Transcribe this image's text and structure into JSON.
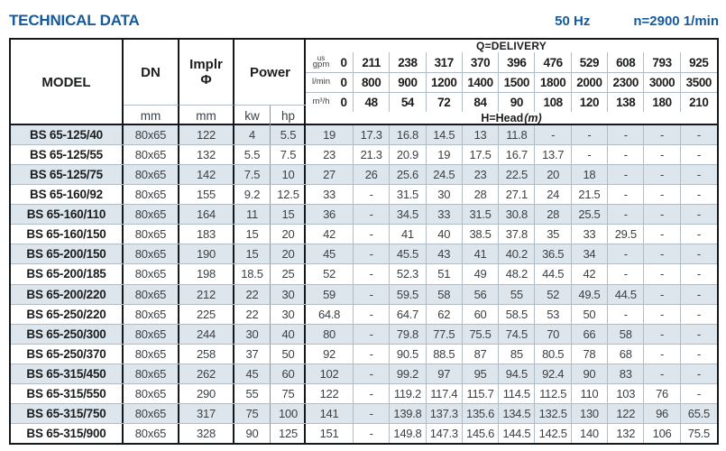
{
  "page": {
    "title": "TECHNICAL DATA",
    "frequency": "50 Hz",
    "speed": "n=2900 1/min"
  },
  "colors": {
    "accent_blue": "#155a9c",
    "row_shade": "#dde6ec",
    "border_dark": "#15181b",
    "grid_light": "#b2bcc4"
  },
  "table": {
    "left_header": {
      "model": "MODEL",
      "dn": "DN",
      "implr_top": "Implr",
      "implr_sym": "Φ",
      "power": "Power",
      "dn_unit": "mm",
      "implr_unit": "mm",
      "kw": "kw",
      "hp": "hp"
    },
    "delivery_header": {
      "title": "Q=DELIVERY",
      "flow_rows": [
        {
          "unit_sup": "us",
          "unit": "gpm",
          "values": [
            "0",
            "211",
            "238",
            "317",
            "370",
            "396",
            "476",
            "529",
            "608",
            "793",
            "925"
          ]
        },
        {
          "unit_sup": "",
          "unit": "l/min",
          "values": [
            "0",
            "800",
            "900",
            "1200",
            "1400",
            "1500",
            "1800",
            "2000",
            "2300",
            "3000",
            "3500"
          ]
        },
        {
          "unit_sup": "",
          "unit": "m³/h",
          "values": [
            "0",
            "48",
            "54",
            "72",
            "84",
            "90",
            "108",
            "120",
            "138",
            "180",
            "210"
          ]
        }
      ],
      "head_label": "H=Head",
      "head_unit": "(m)"
    },
    "rows": [
      {
        "model": "BS 65-125/40",
        "dn": "80x65",
        "implr": "122",
        "kw": "4",
        "hp": "5.5",
        "head": [
          "19",
          "17.3",
          "16.8",
          "14.5",
          "13",
          "11.8",
          "-",
          "-",
          "-",
          "-",
          "-"
        ]
      },
      {
        "model": "BS 65-125/55",
        "dn": "80x65",
        "implr": "132",
        "kw": "5.5",
        "hp": "7.5",
        "head": [
          "23",
          "21.3",
          "20.9",
          "19",
          "17.5",
          "16.7",
          "13.7",
          "-",
          "-",
          "-",
          "-"
        ]
      },
      {
        "model": "BS 65-125/75",
        "dn": "80x65",
        "implr": "142",
        "kw": "7.5",
        "hp": "10",
        "head": [
          "27",
          "26",
          "25.6",
          "24.5",
          "23",
          "22.5",
          "20",
          "18",
          "-",
          "-",
          "-"
        ]
      },
      {
        "model": "BS 65-160/92",
        "dn": "80x65",
        "implr": "155",
        "kw": "9.2",
        "hp": "12.5",
        "head": [
          "33",
          "-",
          "31.5",
          "30",
          "28",
          "27.1",
          "24",
          "21.5",
          "-",
          "-",
          "-"
        ]
      },
      {
        "model": "BS 65-160/110",
        "dn": "80x65",
        "implr": "164",
        "kw": "11",
        "hp": "15",
        "head": [
          "36",
          "-",
          "34.5",
          "33",
          "31.5",
          "30.8",
          "28",
          "25.5",
          "-",
          "-",
          "-"
        ]
      },
      {
        "model": "BS 65-160/150",
        "dn": "80x65",
        "implr": "183",
        "kw": "15",
        "hp": "20",
        "head": [
          "42",
          "-",
          "41",
          "40",
          "38.5",
          "37.8",
          "35",
          "33",
          "29.5",
          "-",
          "-"
        ]
      },
      {
        "model": "BS 65-200/150",
        "dn": "80x65",
        "implr": "190",
        "kw": "15",
        "hp": "20",
        "head": [
          "45",
          "-",
          "45.5",
          "43",
          "41",
          "40.2",
          "36.5",
          "34",
          "-",
          "-",
          "-"
        ]
      },
      {
        "model": "BS 65-200/185",
        "dn": "80x65",
        "implr": "198",
        "kw": "18.5",
        "hp": "25",
        "head": [
          "52",
          "-",
          "52.3",
          "51",
          "49",
          "48.2",
          "44.5",
          "42",
          "-",
          "-",
          "-"
        ]
      },
      {
        "model": "BS 65-200/220",
        "dn": "80x65",
        "implr": "212",
        "kw": "22",
        "hp": "30",
        "head": [
          "59",
          "-",
          "59.5",
          "58",
          "56",
          "55",
          "52",
          "49.5",
          "44.5",
          "-",
          "-"
        ]
      },
      {
        "model": "BS 65-250/220",
        "dn": "80x65",
        "implr": "225",
        "kw": "22",
        "hp": "30",
        "head": [
          "64.8",
          "-",
          "64.7",
          "62",
          "60",
          "58.5",
          "53",
          "50",
          "-",
          "-",
          "-"
        ]
      },
      {
        "model": "BS 65-250/300",
        "dn": "80x65",
        "implr": "244",
        "kw": "30",
        "hp": "40",
        "head": [
          "80",
          "-",
          "79.8",
          "77.5",
          "75.5",
          "74.5",
          "70",
          "66",
          "58",
          "-",
          "-"
        ]
      },
      {
        "model": "BS 65-250/370",
        "dn": "80x65",
        "implr": "258",
        "kw": "37",
        "hp": "50",
        "head": [
          "92",
          "-",
          "90.5",
          "88.5",
          "87",
          "85",
          "80.5",
          "78",
          "68",
          "-",
          "-"
        ]
      },
      {
        "model": "BS 65-315/450",
        "dn": "80x65",
        "implr": "262",
        "kw": "45",
        "hp": "60",
        "head": [
          "102",
          "-",
          "99.2",
          "97",
          "95",
          "94.5",
          "92.4",
          "90",
          "83",
          "-",
          "-"
        ]
      },
      {
        "model": "BS 65-315/550",
        "dn": "80x65",
        "implr": "290",
        "kw": "55",
        "hp": "75",
        "head": [
          "122",
          "-",
          "119.2",
          "117.4",
          "115.7",
          "114.5",
          "112.5",
          "110",
          "103",
          "76",
          "-"
        ]
      },
      {
        "model": "BS 65-315/750",
        "dn": "80x65",
        "implr": "317",
        "kw": "75",
        "hp": "100",
        "head": [
          "141",
          "-",
          "139.8",
          "137.3",
          "135.6",
          "134.5",
          "132.5",
          "130",
          "122",
          "96",
          "65.5"
        ]
      },
      {
        "model": "BS 65-315/900",
        "dn": "80x65",
        "implr": "328",
        "kw": "90",
        "hp": "125",
        "head": [
          "151",
          "-",
          "149.8",
          "147.3",
          "145.6",
          "144.5",
          "142.5",
          "140",
          "132",
          "106",
          "75.5"
        ]
      }
    ]
  }
}
